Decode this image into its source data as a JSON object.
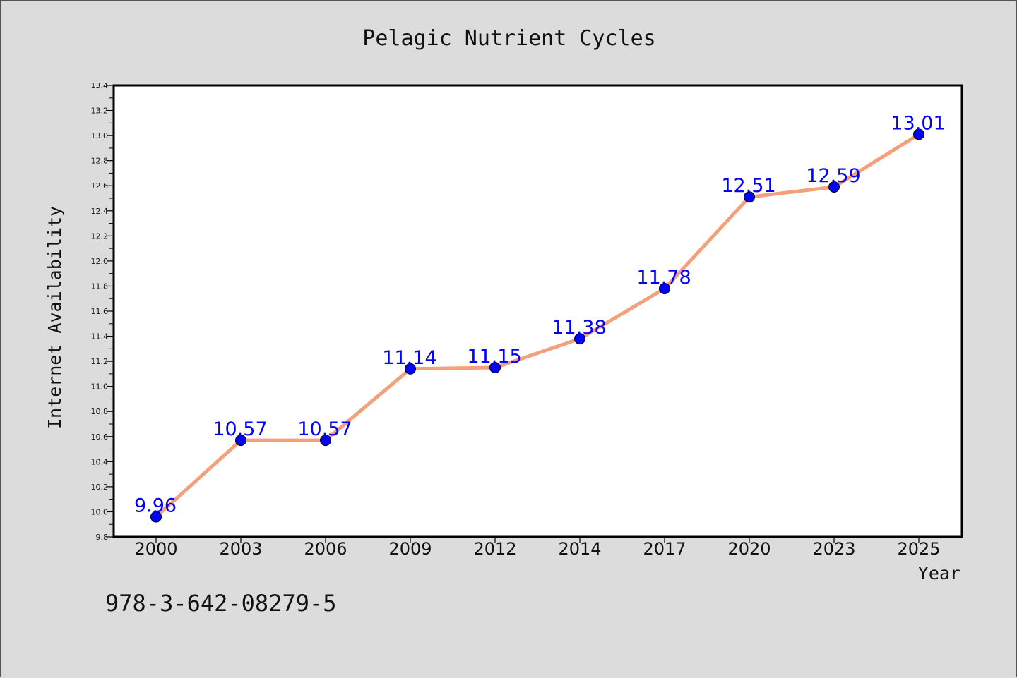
{
  "chart_data": {
    "type": "line",
    "title": "Pelagic Nutrient Cycles",
    "xlabel": "Year",
    "ylabel": "Internet Availability",
    "categories": [
      "2000",
      "2003",
      "2006",
      "2009",
      "2012",
      "2014",
      "2017",
      "2020",
      "2023",
      "2025"
    ],
    "series": [
      {
        "values": [
          9.96,
          10.57,
          10.57,
          11.14,
          11.15,
          11.38,
          11.78,
          12.51,
          12.59,
          13.01
        ],
        "data_labels": [
          "9.96",
          "10.57",
          "10.57",
          "11.14",
          "11.15",
          "11.38",
          "11.78",
          "12.51",
          "12.59",
          "13.01"
        ],
        "line_color": "#f4a07c",
        "marker_color": "#0000ff",
        "label_color": "#0000ff"
      }
    ],
    "ylim": [
      9.8,
      13.4
    ],
    "yticks": [
      "9.8",
      "10.0",
      "10.2",
      "10.4",
      "10.6",
      "10.8",
      "11.0",
      "11.2",
      "11.4",
      "11.6",
      "11.8",
      "12.0",
      "12.2",
      "12.4",
      "12.6",
      "12.8",
      "13.0",
      "13.2",
      "13.4"
    ],
    "grid": false,
    "legend": "none"
  },
  "footer": {
    "isbn": "978-3-642-08279-5"
  },
  "colors": {
    "background": "#dcdcdc",
    "plot_area": "#ffffff",
    "axis": "#000000"
  }
}
